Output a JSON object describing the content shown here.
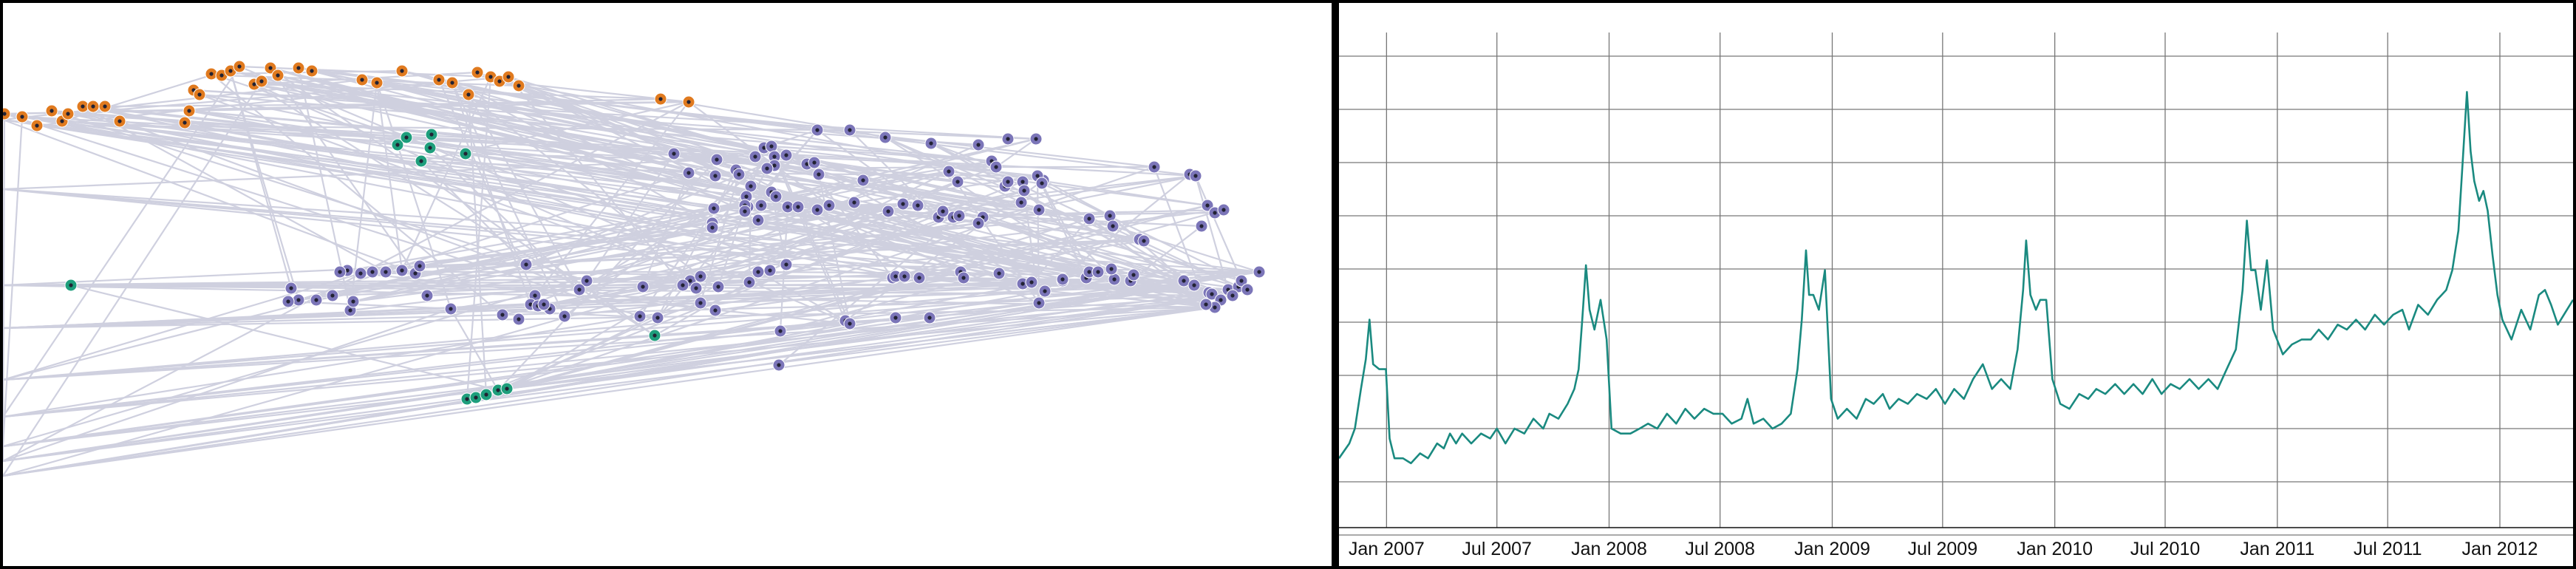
{
  "colors": {
    "edge": "#cfd0df",
    "orange_group": "#e07a1f",
    "teal_group": "#1e9e7c",
    "purple_group": "#7b75b8",
    "node_center": "#222233",
    "line": "#1a8a80",
    "grid": "#777777"
  },
  "network": {
    "type": "node-link graph",
    "groups": [
      "orange",
      "teal",
      "purple"
    ],
    "node_counts": {
      "orange": 36,
      "teal": 12,
      "purple": 118
    }
  },
  "chart_data": {
    "type": "line",
    "title": "",
    "xlabel": "",
    "ylabel": "",
    "grid": true,
    "y_tick_labels_shown": false,
    "x_ticks": [
      "Jan 2007",
      "Jul 2007",
      "Jan 2008",
      "Jul 2008",
      "Jan 2009",
      "Jul 2009",
      "Jan 2010",
      "Jul 2010",
      "Jan 2011",
      "Jul 2011",
      "Jan 2012"
    ],
    "x_range": [
      "2006-10-15",
      "2012-04-30"
    ],
    "ylim": [
      0,
      100
    ],
    "series": [
      {
        "points": [
          [
            "2006-10-15",
            14
          ],
          [
            "2006-11-01",
            17
          ],
          [
            "2006-11-10",
            20
          ],
          [
            "2006-11-20",
            28
          ],
          [
            "2006-11-28",
            34
          ],
          [
            "2006-12-04",
            42
          ],
          [
            "2006-12-10",
            33
          ],
          [
            "2006-12-20",
            32
          ],
          [
            "2006-12-31",
            32
          ],
          [
            "2007-01-06",
            18
          ],
          [
            "2007-01-14",
            14
          ],
          [
            "2007-01-28",
            14
          ],
          [
            "2007-02-10",
            13
          ],
          [
            "2007-02-25",
            15
          ],
          [
            "2007-03-10",
            14
          ],
          [
            "2007-03-25",
            17
          ],
          [
            "2007-04-05",
            16
          ],
          [
            "2007-04-15",
            19
          ],
          [
            "2007-04-25",
            17
          ],
          [
            "2007-05-05",
            19
          ],
          [
            "2007-05-20",
            17
          ],
          [
            "2007-06-05",
            19
          ],
          [
            "2007-06-20",
            18
          ],
          [
            "2007-07-01",
            20
          ],
          [
            "2007-07-15",
            17
          ],
          [
            "2007-07-30",
            20
          ],
          [
            "2007-08-15",
            19
          ],
          [
            "2007-08-30",
            22
          ],
          [
            "2007-09-15",
            20
          ],
          [
            "2007-09-25",
            23
          ],
          [
            "2007-10-10",
            22
          ],
          [
            "2007-10-25",
            25
          ],
          [
            "2007-11-05",
            28
          ],
          [
            "2007-11-12",
            32
          ],
          [
            "2007-11-18",
            42
          ],
          [
            "2007-11-24",
            53
          ],
          [
            "2007-11-30",
            44
          ],
          [
            "2007-12-08",
            40
          ],
          [
            "2007-12-18",
            46
          ],
          [
            "2007-12-28",
            38
          ],
          [
            "2008-01-05",
            20
          ],
          [
            "2008-01-20",
            19
          ],
          [
            "2008-02-05",
            19
          ],
          [
            "2008-02-20",
            20
          ],
          [
            "2008-03-05",
            21
          ],
          [
            "2008-03-20",
            20
          ],
          [
            "2008-04-05",
            23
          ],
          [
            "2008-04-20",
            21
          ],
          [
            "2008-05-05",
            24
          ],
          [
            "2008-05-20",
            22
          ],
          [
            "2008-06-05",
            24
          ],
          [
            "2008-06-20",
            23
          ],
          [
            "2008-07-05",
            23
          ],
          [
            "2008-07-20",
            21
          ],
          [
            "2008-08-05",
            22
          ],
          [
            "2008-08-15",
            26
          ],
          [
            "2008-08-25",
            21
          ],
          [
            "2008-09-10",
            22
          ],
          [
            "2008-09-25",
            20
          ],
          [
            "2008-10-10",
            21
          ],
          [
            "2008-10-25",
            23
          ],
          [
            "2008-11-05",
            32
          ],
          [
            "2008-11-12",
            42
          ],
          [
            "2008-11-19",
            56
          ],
          [
            "2008-11-24",
            47
          ],
          [
            "2008-12-01",
            47
          ],
          [
            "2008-12-10",
            44
          ],
          [
            "2008-12-20",
            52
          ],
          [
            "2008-12-30",
            26
          ],
          [
            "2009-01-10",
            22
          ],
          [
            "2009-01-25",
            24
          ],
          [
            "2009-02-10",
            22
          ],
          [
            "2009-02-25",
            26
          ],
          [
            "2009-03-10",
            25
          ],
          [
            "2009-03-25",
            27
          ],
          [
            "2009-04-05",
            24
          ],
          [
            "2009-04-20",
            26
          ],
          [
            "2009-05-05",
            25
          ],
          [
            "2009-05-20",
            27
          ],
          [
            "2009-06-05",
            26
          ],
          [
            "2009-06-20",
            28
          ],
          [
            "2009-07-05",
            25
          ],
          [
            "2009-07-20",
            28
          ],
          [
            "2009-08-05",
            26
          ],
          [
            "2009-08-20",
            30
          ],
          [
            "2009-09-05",
            33
          ],
          [
            "2009-09-20",
            28
          ],
          [
            "2009-10-05",
            30
          ],
          [
            "2009-10-20",
            28
          ],
          [
            "2009-11-01",
            36
          ],
          [
            "2009-11-10",
            48
          ],
          [
            "2009-11-15",
            58
          ],
          [
            "2009-11-22",
            47
          ],
          [
            "2009-12-01",
            44
          ],
          [
            "2009-12-08",
            46
          ],
          [
            "2009-12-18",
            46
          ],
          [
            "2009-12-28",
            30
          ],
          [
            "2010-01-10",
            25
          ],
          [
            "2010-01-25",
            24
          ],
          [
            "2010-02-10",
            27
          ],
          [
            "2010-02-25",
            26
          ],
          [
            "2010-03-10",
            28
          ],
          [
            "2010-03-25",
            27
          ],
          [
            "2010-04-10",
            29
          ],
          [
            "2010-04-25",
            27
          ],
          [
            "2010-05-10",
            29
          ],
          [
            "2010-05-25",
            27
          ],
          [
            "2010-06-10",
            30
          ],
          [
            "2010-06-25",
            27
          ],
          [
            "2010-07-10",
            29
          ],
          [
            "2010-07-25",
            28
          ],
          [
            "2010-08-10",
            30
          ],
          [
            "2010-08-25",
            28
          ],
          [
            "2010-09-10",
            30
          ],
          [
            "2010-09-25",
            28
          ],
          [
            "2010-10-10",
            32
          ],
          [
            "2010-10-25",
            36
          ],
          [
            "2010-11-05",
            48
          ],
          [
            "2010-11-12",
            62
          ],
          [
            "2010-11-19",
            52
          ],
          [
            "2010-11-26",
            52
          ],
          [
            "2010-12-05",
            44
          ],
          [
            "2010-12-15",
            54
          ],
          [
            "2010-12-25",
            40
          ],
          [
            "2011-01-10",
            35
          ],
          [
            "2011-01-25",
            37
          ],
          [
            "2011-02-10",
            38
          ],
          [
            "2011-02-25",
            38
          ],
          [
            "2011-03-10",
            40
          ],
          [
            "2011-03-25",
            38
          ],
          [
            "2011-04-10",
            41
          ],
          [
            "2011-04-25",
            40
          ],
          [
            "2011-05-10",
            42
          ],
          [
            "2011-05-25",
            40
          ],
          [
            "2011-06-10",
            43
          ],
          [
            "2011-06-25",
            41
          ],
          [
            "2011-07-10",
            43
          ],
          [
            "2011-07-25",
            44
          ],
          [
            "2011-08-05",
            40
          ],
          [
            "2011-08-20",
            45
          ],
          [
            "2011-09-05",
            43
          ],
          [
            "2011-09-20",
            46
          ],
          [
            "2011-10-05",
            48
          ],
          [
            "2011-10-15",
            52
          ],
          [
            "2011-10-25",
            60
          ],
          [
            "2011-11-01",
            74
          ],
          [
            "2011-11-08",
            88
          ],
          [
            "2011-11-14",
            76
          ],
          [
            "2011-11-20",
            70
          ],
          [
            "2011-11-28",
            66
          ],
          [
            "2011-12-05",
            68
          ],
          [
            "2011-12-12",
            64
          ],
          [
            "2011-12-20",
            55
          ],
          [
            "2011-12-28",
            47
          ],
          [
            "2012-01-05",
            42
          ],
          [
            "2012-01-20",
            38
          ],
          [
            "2012-02-05",
            44
          ],
          [
            "2012-02-20",
            40
          ],
          [
            "2012-03-05",
            47
          ],
          [
            "2012-03-15",
            48
          ],
          [
            "2012-03-25",
            45
          ],
          [
            "2012-04-05",
            41
          ],
          [
            "2012-04-15",
            43
          ],
          [
            "2012-04-30",
            46
          ]
        ]
      }
    ]
  }
}
